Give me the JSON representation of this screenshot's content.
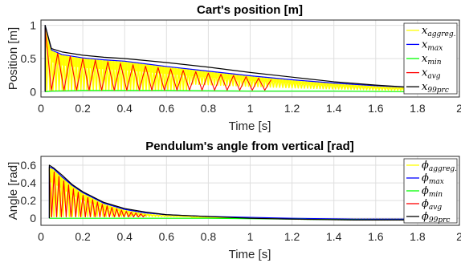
{
  "chart_data": [
    {
      "type": "line",
      "title": "Cart's position [m]",
      "xlabel": "Time [s]",
      "ylabel": "Position [m]",
      "xlim": [
        0,
        2
      ],
      "ylim": [
        -0.08,
        1.08
      ],
      "xticks": [
        "0",
        "0.2",
        "0.4",
        "0.6",
        "0.8",
        "1",
        "1.2",
        "1.4",
        "1.6",
        "1.8",
        "2"
      ],
      "yticks": [
        "0",
        "0.5",
        "1"
      ],
      "grid": true,
      "legend_position": "top-right",
      "series": [
        {
          "name": "x",
          "sub": "aggreg.",
          "color": "#ffff00",
          "kind": "band_lower_max",
          "x": [
            0.02,
            0.05,
            0.1,
            0.2,
            0.3,
            0.4,
            0.5,
            0.6,
            0.8,
            1.0,
            1.2,
            1.4,
            1.6,
            1.8,
            1.95
          ],
          "y": [
            1.0,
            0.62,
            0.55,
            0.5,
            0.47,
            0.45,
            0.41,
            0.37,
            0.3,
            0.23,
            0.17,
            0.12,
            0.08,
            0.05,
            0.02
          ]
        },
        {
          "name": "x",
          "sub": "max",
          "color": "#0000ff",
          "x": [
            0.02,
            0.05,
            0.1,
            0.2,
            0.3,
            0.4,
            0.5,
            0.6,
            0.8,
            1.0,
            1.2,
            1.4,
            1.6,
            1.8,
            1.95
          ],
          "y": [
            1.0,
            0.63,
            0.56,
            0.51,
            0.48,
            0.46,
            0.42,
            0.38,
            0.31,
            0.24,
            0.18,
            0.13,
            0.09,
            0.06,
            0.03
          ]
        },
        {
          "name": "x",
          "sub": "min",
          "color": "#00ff00",
          "x": [
            0.02,
            0.05,
            0.2,
            0.6,
            1.0,
            1.4,
            1.8,
            1.95
          ],
          "y": [
            0.0,
            0.01,
            0.02,
            0.02,
            0.01,
            0.01,
            0.0,
            0.0
          ]
        },
        {
          "name": "x",
          "sub": "avg",
          "color": "#ff0000",
          "kind": "osc",
          "x": [
            0.02,
            0.05,
            0.2,
            0.4,
            0.6,
            0.8,
            1.0,
            1.1
          ],
          "y": [
            0.95,
            0.6,
            0.5,
            0.42,
            0.35,
            0.28,
            0.22,
            0.18
          ]
        },
        {
          "name": "x",
          "sub": "99prc",
          "color": "#000000",
          "x": [
            0.02,
            0.05,
            0.1,
            0.2,
            0.3,
            0.4,
            0.5,
            0.6,
            0.8,
            1.0,
            1.2,
            1.4,
            1.6,
            1.8,
            1.95
          ],
          "y": [
            1.0,
            0.65,
            0.6,
            0.55,
            0.52,
            0.5,
            0.47,
            0.44,
            0.37,
            0.29,
            0.22,
            0.15,
            0.1,
            0.06,
            0.03
          ]
        }
      ]
    },
    {
      "type": "line",
      "title": "Pendulum's angle from vertical [rad]",
      "xlabel": "Time [s]",
      "ylabel": "Angle [rad]",
      "xlim": [
        0,
        2
      ],
      "ylim": [
        -0.08,
        0.7
      ],
      "xticks": [
        "0",
        "0.2",
        "0.4",
        "0.6",
        "0.8",
        "1",
        "1.2",
        "1.4",
        "1.6",
        "1.8",
        "2"
      ],
      "yticks": [
        "0",
        "0.2",
        "0.4",
        "0.6"
      ],
      "grid": true,
      "legend_position": "top-right",
      "series": [
        {
          "name": "ϕ",
          "sub": "aggreg.",
          "color": "#ffff00",
          "kind": "band_lower_max",
          "x": [
            0.04,
            0.06,
            0.1,
            0.15,
            0.2,
            0.3,
            0.4,
            0.5,
            0.6,
            0.8,
            1.0,
            1.2,
            1.5,
            1.8,
            1.95
          ],
          "y": [
            0.57,
            0.55,
            0.46,
            0.36,
            0.28,
            0.16,
            0.09,
            0.05,
            0.03,
            0.01,
            0.0,
            -0.01,
            -0.02,
            -0.02,
            -0.02
          ]
        },
        {
          "name": "ϕ",
          "sub": "max",
          "color": "#0000ff",
          "x": [
            0.04,
            0.06,
            0.1,
            0.15,
            0.2,
            0.3,
            0.4,
            0.5,
            0.6,
            0.8,
            1.0,
            1.2,
            1.5,
            1.8,
            1.95
          ],
          "y": [
            0.58,
            0.56,
            0.47,
            0.37,
            0.29,
            0.17,
            0.1,
            0.06,
            0.04,
            0.02,
            0.01,
            0.0,
            -0.01,
            -0.01,
            -0.01
          ]
        },
        {
          "name": "ϕ",
          "sub": "min",
          "color": "#00ff00",
          "x": [
            0.04,
            0.1,
            0.2,
            0.4,
            0.8,
            1.2,
            1.6,
            1.95
          ],
          "y": [
            0.0,
            0.0,
            0.0,
            0.0,
            0.0,
            -0.01,
            -0.02,
            -0.02
          ]
        },
        {
          "name": "ϕ",
          "sub": "avg",
          "color": "#ff0000",
          "kind": "osc",
          "x": [
            0.04,
            0.06,
            0.1,
            0.15,
            0.2,
            0.3,
            0.4,
            0.5
          ],
          "y": [
            0.55,
            0.53,
            0.44,
            0.34,
            0.26,
            0.15,
            0.08,
            0.04
          ]
        },
        {
          "name": "ϕ",
          "sub": "99prc",
          "color": "#000000",
          "x": [
            0.04,
            0.06,
            0.1,
            0.15,
            0.2,
            0.3,
            0.4,
            0.5,
            0.6,
            0.8,
            1.0,
            1.2,
            1.5,
            1.8,
            1.95
          ],
          "y": [
            0.6,
            0.57,
            0.49,
            0.38,
            0.3,
            0.18,
            0.11,
            0.07,
            0.04,
            0.02,
            0.0,
            -0.01,
            -0.02,
            -0.02,
            -0.02
          ]
        }
      ]
    }
  ]
}
